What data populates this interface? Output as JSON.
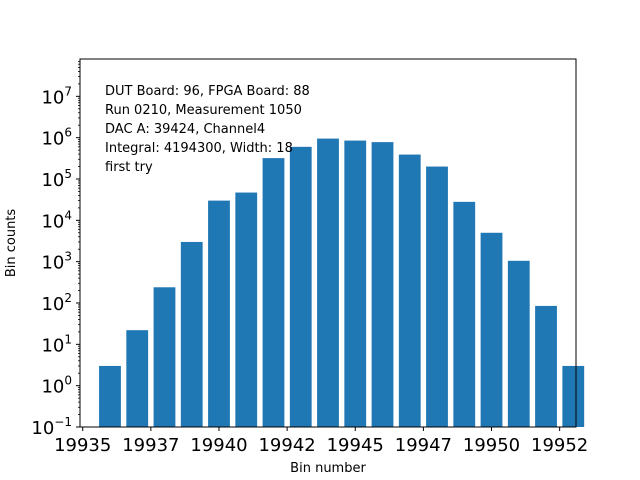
{
  "chart_data": {
    "type": "bar",
    "title": "",
    "xlabel": "Bin number",
    "ylabel": "Bin counts",
    "yscale": "log",
    "ylim": [
      0.1,
      80000000
    ],
    "xlim": [
      19934.9,
      19953.1
    ],
    "bar_color": "#1f77b4",
    "x": [
      19936,
      19937,
      19938,
      19939,
      19940,
      19941,
      19942,
      19943,
      19944,
      19945,
      19946,
      19947,
      19948,
      19949,
      19950,
      19951,
      19952,
      19953
    ],
    "values": [
      3,
      22,
      240,
      3000,
      30000,
      47000,
      320000,
      600000,
      950000,
      850000,
      780000,
      390000,
      200000,
      28000,
      5000,
      1050,
      85,
      3
    ],
    "x_tick_labels": [
      {
        "x": 19935,
        "label": "19935"
      },
      {
        "x": 19937.5,
        "label": "19937"
      },
      {
        "x": 19940,
        "label": "19940"
      },
      {
        "x": 19942.5,
        "label": "19942"
      },
      {
        "x": 19945,
        "label": "19945"
      },
      {
        "x": 19947.5,
        "label": "19947"
      },
      {
        "x": 19950,
        "label": "19950"
      },
      {
        "x": 19952.5,
        "label": "19952"
      }
    ],
    "y_ticks": [
      {
        "exp": -1,
        "base": "10",
        "sup": "−1"
      },
      {
        "exp": 0,
        "base": "10",
        "sup": "0"
      },
      {
        "exp": 1,
        "base": "10",
        "sup": "1"
      },
      {
        "exp": 2,
        "base": "10",
        "sup": "2"
      },
      {
        "exp": 3,
        "base": "10",
        "sup": "3"
      },
      {
        "exp": 4,
        "base": "10",
        "sup": "4"
      },
      {
        "exp": 5,
        "base": "10",
        "sup": "5"
      },
      {
        "exp": 6,
        "base": "10",
        "sup": "6"
      },
      {
        "exp": 7,
        "base": "10",
        "sup": "7"
      }
    ],
    "annotations": [
      "DUT Board: 96, FPGA Board: 88",
      "Run 0210, Measurement 1050",
      "DAC A: 39424, Channel4",
      "Integral: 4194300, Width: 18",
      "first try"
    ]
  }
}
